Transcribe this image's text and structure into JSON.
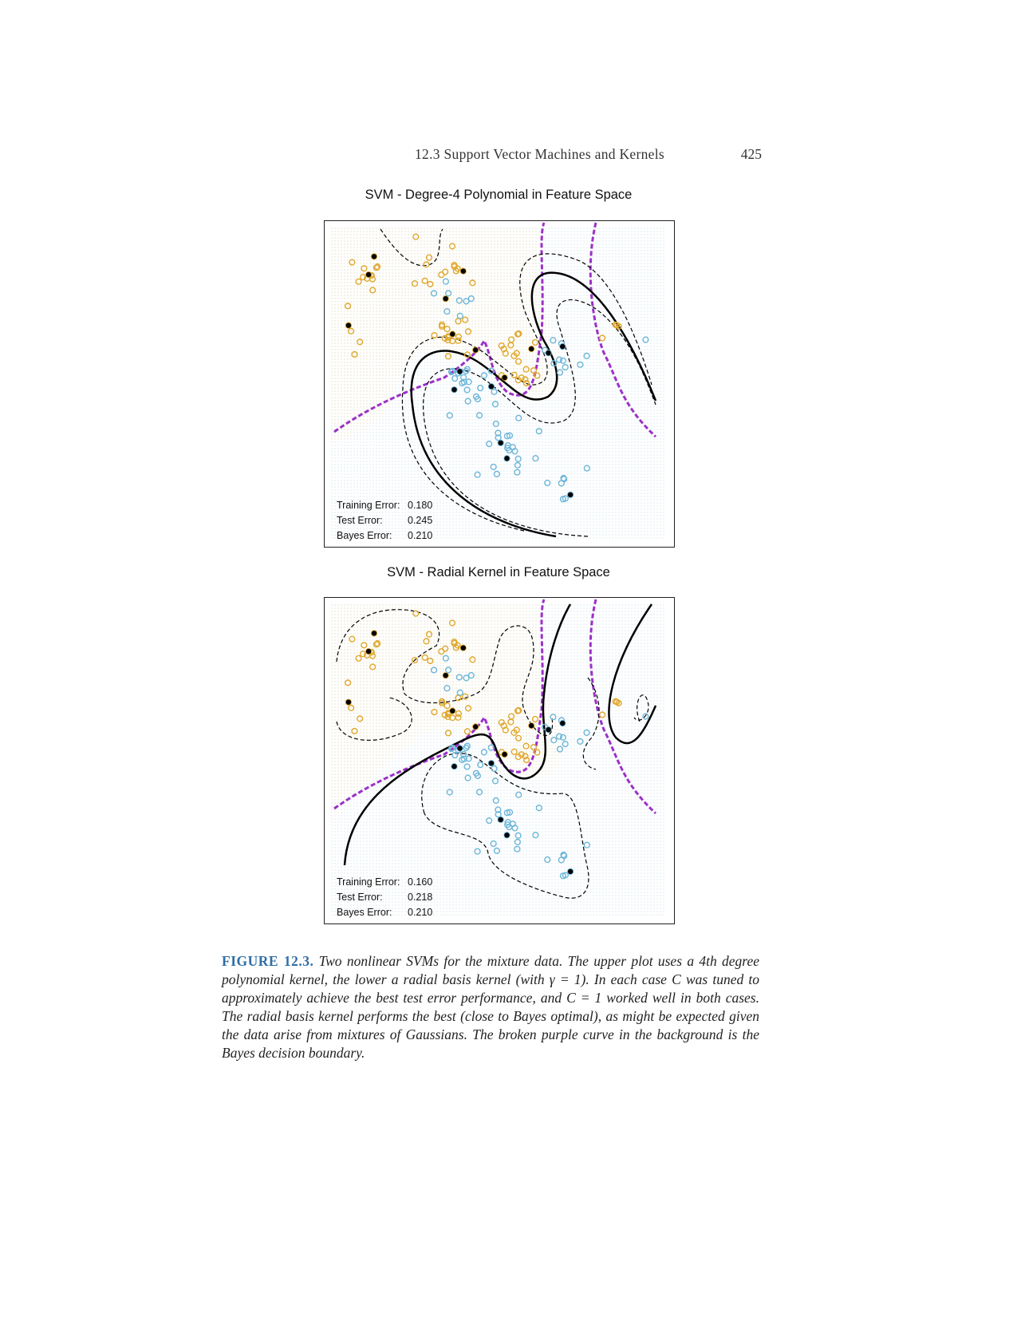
{
  "header": {
    "section_title": "12.3 Support Vector Machines and Kernels",
    "page_number": "425"
  },
  "plots": [
    {
      "title": "SVM - Degree-4 Polynomial in Feature Space",
      "errors": [
        {
          "label": "Training Error:",
          "value": "0.180"
        },
        {
          "label": "Test Error:",
          "value": "0.245"
        },
        {
          "label": "Bayes Error:",
          "value": "0.210"
        }
      ]
    },
    {
      "title": "SVM - Radial Kernel in Feature Space",
      "errors": [
        {
          "label": "Training Error:",
          "value": "0.160"
        },
        {
          "label": "Test Error:",
          "value": "0.218"
        },
        {
          "label": "Bayes Error:",
          "value": "0.210"
        }
      ]
    }
  ],
  "caption": {
    "label": "FIGURE 12.3.",
    "text": "Two nonlinear SVMs for the mixture data. The upper plot uses a 4th degree polynomial kernel, the lower a radial basis kernel (with γ = 1). In each case C was tuned to approximately achieve the best test error performance, and C = 1 worked well in both cases. The radial basis kernel performs the best (close to Bayes optimal), as might be expected given the data arise from mixtures of Gaussians. The broken purple curve in the background is the Bayes decision boundary."
  },
  "colors": {
    "class_orange": "#e0a82e",
    "class_blue": "#6db6d8",
    "bayes_boundary": "#9b30c8",
    "svm_boundary": "#000000",
    "caption_label": "#2e6ea6"
  }
}
